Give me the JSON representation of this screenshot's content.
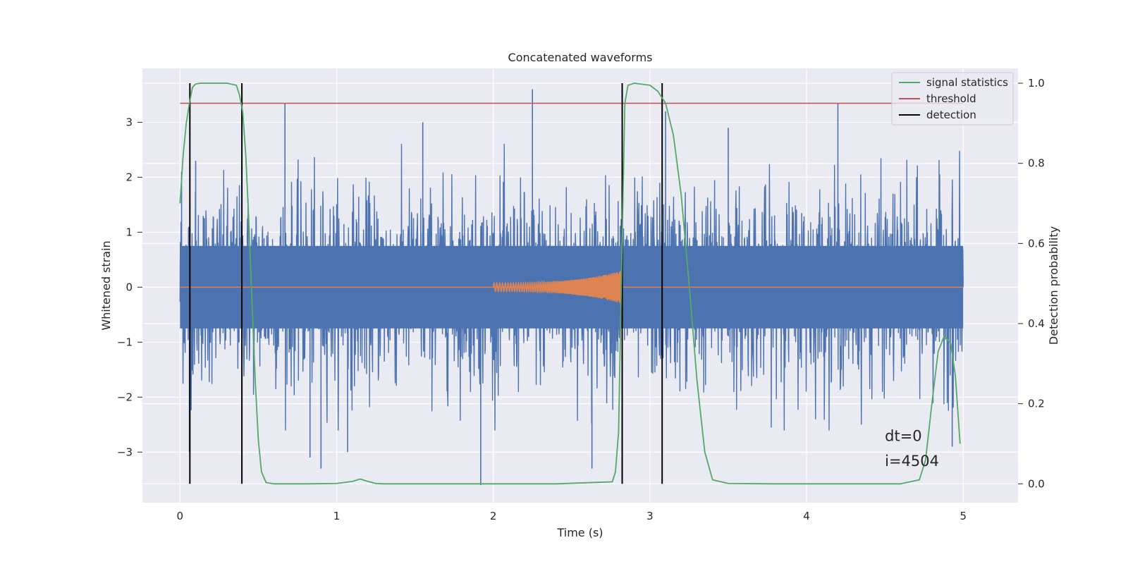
{
  "chart_data": {
    "type": "line",
    "title": "Concatenated waveforms",
    "xlabel": "Time (s)",
    "ylabel": "Whitened strain",
    "ylabel_right": "Detection probability",
    "xlim": [
      -0.24,
      5.35
    ],
    "ylim": [
      -3.92,
      3.98
    ],
    "ylim_right": [
      -0.047,
      1.037
    ],
    "x_ticks": [
      0,
      1,
      2,
      3,
      4,
      5
    ],
    "y_ticks": [
      -3,
      -2,
      -1,
      0,
      1,
      2,
      3
    ],
    "y_ticks_right": [
      0.0,
      0.2,
      0.4,
      0.6,
      0.8,
      1.0
    ],
    "grid": true,
    "legend_position": "top-right",
    "noise_series": {
      "name": "",
      "color": "#4c72b0",
      "x_range": [
        0,
        5
      ],
      "core_amplitude": 0.75,
      "peaks": [
        {
          "x": 0.01,
          "y": 2.1
        },
        {
          "x": 0.06,
          "y": -3.0
        },
        {
          "x": 0.1,
          "y": 2.3
        },
        {
          "x": 0.67,
          "y": 3.35
        },
        {
          "x": 0.83,
          "y": -3.1
        },
        {
          "x": 0.9,
          "y": -3.3
        },
        {
          "x": 1.07,
          "y": -3.0
        },
        {
          "x": 1.55,
          "y": 3.0
        },
        {
          "x": 1.92,
          "y": -3.6
        },
        {
          "x": 2.25,
          "y": 3.6
        },
        {
          "x": 2.63,
          "y": -3.3
        },
        {
          "x": 3.1,
          "y": 3.2
        },
        {
          "x": 3.5,
          "y": 2.9
        },
        {
          "x": 4.2,
          "y": 3.35
        },
        {
          "x": 4.93,
          "y": -2.9
        }
      ]
    },
    "injected_signal": {
      "name": "",
      "color": "#dd8452",
      "x_range": [
        2.0,
        2.82
      ],
      "start_amplitude": 0.08,
      "end_amplitude": 0.3
    },
    "series": [
      {
        "name": "signal statistics",
        "color": "#55a868",
        "axis": "right",
        "x": [
          0.0,
          0.02,
          0.04,
          0.06,
          0.08,
          0.1,
          0.13,
          0.2,
          0.3,
          0.36,
          0.38,
          0.4,
          0.42,
          0.44,
          0.46,
          0.48,
          0.5,
          0.52,
          0.55,
          0.6,
          0.8,
          1.0,
          1.1,
          1.15,
          1.2,
          1.25,
          1.3,
          1.6,
          2.0,
          2.4,
          2.76,
          2.78,
          2.8,
          2.82,
          2.84,
          2.86,
          2.9,
          3.0,
          3.05,
          3.1,
          3.15,
          3.2,
          3.25,
          3.3,
          3.35,
          3.4,
          3.5,
          3.8,
          4.2,
          4.6,
          4.72,
          4.76,
          4.8,
          4.84,
          4.88,
          4.92,
          4.95,
          4.98
        ],
        "y": [
          0.7,
          0.82,
          0.9,
          0.95,
          0.99,
          0.998,
          1.0,
          1.0,
          1.0,
          0.995,
          0.97,
          0.93,
          0.82,
          0.65,
          0.45,
          0.26,
          0.11,
          0.03,
          0.003,
          0.0,
          0.0,
          0.001,
          0.006,
          0.012,
          0.006,
          0.001,
          0.0,
          0.0,
          0.0,
          0.0,
          0.005,
          0.03,
          0.13,
          0.55,
          0.95,
          0.995,
          1.0,
          0.995,
          0.98,
          0.95,
          0.87,
          0.72,
          0.5,
          0.26,
          0.08,
          0.01,
          0.001,
          0.0,
          0.0,
          0.0,
          0.01,
          0.06,
          0.2,
          0.33,
          0.37,
          0.35,
          0.27,
          0.1
        ]
      },
      {
        "name": "threshold",
        "color": "#c44e52",
        "axis": "right",
        "x": [
          0,
          5
        ],
        "y": [
          0.95,
          0.95
        ]
      },
      {
        "name": "detection",
        "color": "#000000",
        "axis": "right",
        "x": [
          0.063,
          0.395,
          2.823,
          3.078
        ],
        "y_range": [
          0.0,
          1.0
        ]
      }
    ],
    "annotations": [
      "dt=0",
      "i=4504"
    ]
  }
}
